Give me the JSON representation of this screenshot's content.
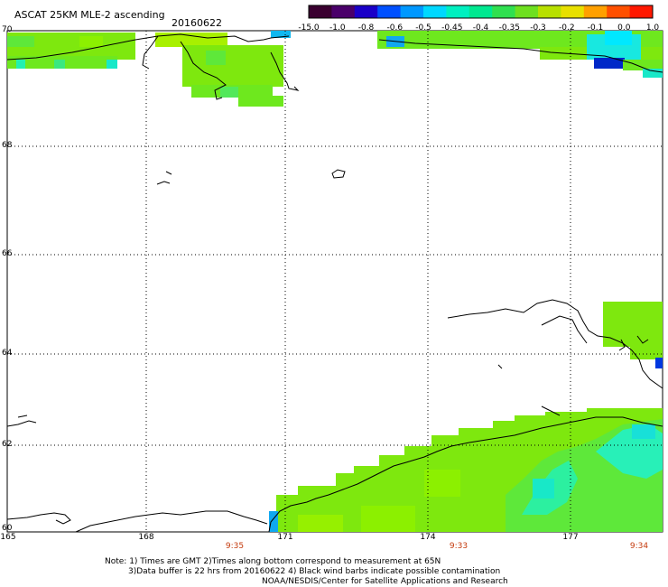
{
  "header": {
    "title": "ASCAT 25KM MLE-2 ascending",
    "date": "20160622"
  },
  "colorbar": {
    "labels": [
      "-15.0",
      "-1.0",
      "-0.8",
      "-0.6",
      "-0.5",
      "-0.45",
      "-0.4",
      "-0.35",
      "-0.3",
      "-0.2",
      "-0.1",
      "0.0",
      "1.0"
    ],
    "colors": [
      "#3a0030",
      "#4a006a",
      "#1a00c8",
      "#0050ff",
      "#0098ff",
      "#00d8ff",
      "#00f0c0",
      "#00e890",
      "#30e050",
      "#6ee020",
      "#b8e000",
      "#e8e000",
      "#ffa000",
      "#ff5000",
      "#ff1800"
    ]
  },
  "map": {
    "lat_labels": [
      "70",
      "68",
      "66",
      "64",
      "62",
      "60"
    ],
    "lon_labels": [
      "165",
      "168",
      "171",
      "174",
      "177"
    ],
    "time_labels": [
      "9:35",
      "9:33",
      "9:34"
    ],
    "colors": {
      "land": "#ffffff",
      "data_main": "#7ee80e",
      "data_light": "#8cf000",
      "data_mid": "#5ee83a",
      "data_cyan": "#22f0b0",
      "data_aqua": "#18e8e0",
      "data_blue": "#0038e0",
      "data_sky": "#10a8f0",
      "coast": "#000000",
      "grid": "#000000"
    }
  },
  "footer": {
    "line1": "Note: 1) Times are GMT 2)Times along bottom correspond to measurement at 65N",
    "line2": "3)Data buffer is 22 hrs from 20160622 4) Black wind barbs indicate possible contamination",
    "line3": "NOAA/NESDIS/Center for Satellite Applications and Research"
  }
}
